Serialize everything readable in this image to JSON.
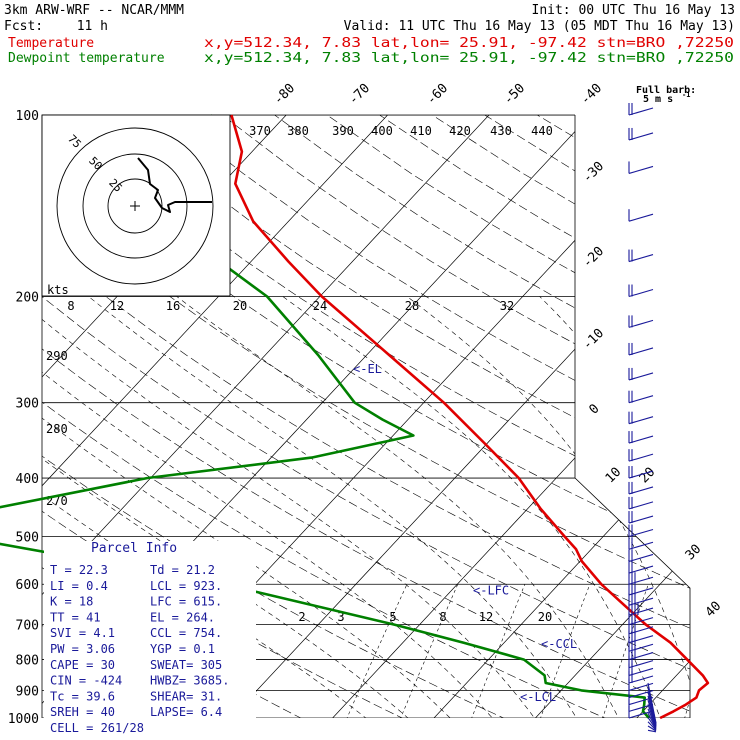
{
  "header": {
    "model": "3km ARW-WRF -- NCAR/MMM",
    "init": "Init: 00 UTC Thu 16 May 13",
    "fcst_label": "Fcst:",
    "fcst_value": "11 h",
    "valid": "Valid: 11 UTC Thu 16 May 13 (05 MDT Thu 16 May 13)",
    "temp_label": "Temperature",
    "temp_loc": "x,y=512.34,  7.83   lat,lon= 25.91, -97.42  stn=BRO ,72250",
    "dew_label": "Dewpoint temperature",
    "dew_loc": "x,y=512.34,  7.83   lat,lon= 25.91, -97.42  stn=BRO ,72250"
  },
  "barb_key": {
    "line1": "Full barb:",
    "line2": "5 m s",
    "exp": "-1"
  },
  "colors": {
    "temperature": "#e00000",
    "dewpoint": "#008000",
    "annotation": "#1a1a9a",
    "hodograph": "#000000"
  },
  "chart_data": {
    "type": "skew-t log-p",
    "y_axis": {
      "quantity": "pressure (hPa)",
      "scale": "log",
      "range": [
        1000,
        100
      ],
      "ticks": [
        100,
        200,
        300,
        400,
        500,
        600,
        700,
        800,
        900,
        1000
      ]
    },
    "isotherm_labels": [
      "-80",
      "-70",
      "-60",
      "-50",
      "-40",
      "-30",
      "-20",
      "-10",
      "0",
      "10",
      "20",
      "30",
      "40"
    ],
    "theta_labels": [
      "370",
      "380",
      "390",
      "400",
      "410",
      "420",
      "430",
      "440"
    ],
    "left_theta_labels": [
      "290",
      "280",
      "270"
    ],
    "mixing_ratio_labels": [
      "2",
      "3",
      "5",
      "8",
      "12",
      "20"
    ],
    "temperature_series": {
      "name": "Temperature",
      "points": [
        {
          "p": 1000,
          "t": 22.3
        },
        {
          "p": 975,
          "t": 23.0
        },
        {
          "p": 950,
          "t": 23.6
        },
        {
          "p": 925,
          "t": 24.0
        },
        {
          "p": 900,
          "t": 23.6
        },
        {
          "p": 875,
          "t": 23.8
        },
        {
          "p": 850,
          "t": 22.6
        },
        {
          "p": 800,
          "t": 19.6
        },
        {
          "p": 750,
          "t": 16.4
        },
        {
          "p": 700,
          "t": 12.3
        },
        {
          "p": 650,
          "t": 8.4
        },
        {
          "p": 600,
          "t": 4.2
        },
        {
          "p": 550,
          "t": 0.2
        },
        {
          "p": 525,
          "t": -1.5
        },
        {
          "p": 500,
          "t": -3.8
        },
        {
          "p": 450,
          "t": -8.7
        },
        {
          "p": 400,
          "t": -13.7
        },
        {
          "p": 350,
          "t": -20.3
        },
        {
          "p": 300,
          "t": -28.0
        },
        {
          "p": 250,
          "t": -37.8
        },
        {
          "p": 200,
          "t": -49.8
        },
        {
          "p": 175,
          "t": -56.3
        },
        {
          "p": 150,
          "t": -63.5
        },
        {
          "p": 130,
          "t": -68.7
        },
        {
          "p": 115,
          "t": -71.0
        },
        {
          "p": 100,
          "t": -75.4
        }
      ]
    },
    "dewpoint_series": {
      "name": "Dewpoint temperature",
      "points": [
        {
          "p": 1000,
          "t": 21.2
        },
        {
          "p": 975,
          "t": 20.0
        },
        {
          "p": 950,
          "t": 19.5
        },
        {
          "p": 925,
          "t": 18.9
        },
        {
          "p": 900,
          "t": 12.0
        },
        {
          "p": 875,
          "t": 7.8
        },
        {
          "p": 850,
          "t": 7.0
        },
        {
          "p": 800,
          "t": 3.5
        },
        {
          "p": 750,
          "t": -4.0
        },
        {
          "p": 700,
          "t": -12.5
        },
        {
          "p": 600,
          "t": -33.0
        },
        {
          "p": 500,
          "t": -63.6
        },
        {
          "p": 470,
          "t": -67.5
        },
        {
          "p": 400,
          "t": -50.3
        },
        {
          "p": 370,
          "t": -36.0
        },
        {
          "p": 340,
          "t": -28.0
        },
        {
          "p": 320,
          "t": -32.5
        },
        {
          "p": 300,
          "t": -36.8
        },
        {
          "p": 250,
          "t": -44.8
        },
        {
          "p": 200,
          "t": -55.2
        },
        {
          "p": 150,
          "t": -72.2
        },
        {
          "p": 120,
          "t": -76.6
        },
        {
          "p": 100,
          "t": -77.3
        }
      ]
    },
    "level_markers": [
      {
        "label": "<-EL",
        "p": 264
      },
      {
        "label": "<-LFC",
        "p": 615
      },
      {
        "label": "<-CCL",
        "p": 754
      },
      {
        "label": "<-LCL",
        "p": 923
      }
    ],
    "hodograph": {
      "rings_label": "kts",
      "ring_labels": [
        "25",
        "50",
        "75"
      ],
      "speed_labels": [
        "8",
        "12",
        "16",
        "20",
        "24",
        "28",
        "32"
      ]
    },
    "wind_barbs": {
      "pressures": [
        1000,
        975,
        950,
        925,
        900,
        875,
        850,
        825,
        800,
        775,
        750,
        725,
        700,
        675,
        650,
        625,
        600,
        575,
        550,
        525,
        500,
        475,
        450,
        425,
        400,
        375,
        350,
        325,
        300,
        275,
        250,
        225,
        200,
        175,
        150,
        125,
        110,
        100
      ],
      "speed_ms": [
        5,
        5,
        5,
        5,
        5,
        10,
        10,
        10,
        15,
        15,
        15,
        15,
        15,
        20,
        15,
        15,
        15,
        10,
        10,
        10,
        10,
        10,
        10,
        10,
        10,
        10,
        10,
        10,
        10,
        10,
        10,
        10,
        10,
        10,
        5,
        5,
        10,
        10
      ]
    }
  },
  "parcel_info": {
    "title": "Parcel Info",
    "rows": [
      {
        "left": "T   =    22.3",
        "right": "Td  =   21.2"
      },
      {
        "left": "LI  =     0.4",
        "right": "LCL =  923."
      },
      {
        "left": "K   =      18",
        "right": "LFC =  615."
      },
      {
        "left": "TT  =      41",
        "right": "EL  =  264."
      },
      {
        "left": "SVI =     4.1",
        "right": "CCL =  754."
      },
      {
        "left": "PW  =    3.06",
        "right": "YGP =    0.1"
      },
      {
        "left": "CAPE =     30",
        "right": "SWEAT=  305"
      },
      {
        "left": "CIN  =   -424",
        "right": "HWBZ= 3685."
      },
      {
        "left": "Tc  =    39.6",
        "right": "SHEAR=  31."
      },
      {
        "left": "SREH =     40",
        "right": "LAPSE=   6.4"
      },
      {
        "left": "CELL = 261/28",
        "right": ""
      }
    ]
  }
}
